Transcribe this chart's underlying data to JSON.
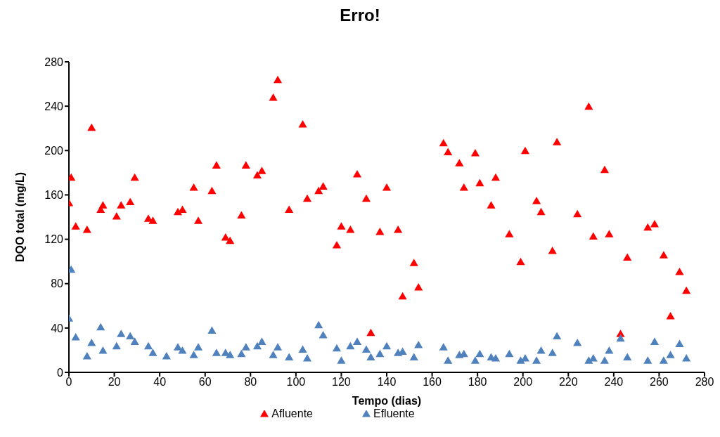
{
  "chart_data": {
    "type": "scatter",
    "title": "Erro!",
    "xlabel": "Tempo (dias)",
    "ylabel": "DQO total (mg/L)",
    "xlim": [
      0,
      280
    ],
    "xticks": [
      0,
      20,
      40,
      60,
      80,
      100,
      120,
      140,
      160,
      180,
      200,
      220,
      240,
      260,
      280
    ],
    "ylim": [
      0,
      280
    ],
    "yticks": [
      0,
      40,
      80,
      120,
      160,
      200,
      240,
      280
    ],
    "grid": false,
    "legend": "bottom",
    "marker": "triangle",
    "series": [
      {
        "name": "Afluente",
        "color": "#ff0000",
        "x": [
          0,
          1,
          3,
          8,
          10,
          14,
          15,
          21,
          23,
          27,
          29,
          35,
          37,
          48,
          50,
          55,
          57,
          63,
          65,
          69,
          71,
          76,
          78,
          83,
          85,
          90,
          92,
          97,
          103,
          105,
          110,
          112,
          118,
          120,
          124,
          127,
          131,
          133,
          137,
          140,
          145,
          147,
          152,
          154,
          165,
          167,
          172,
          174,
          179,
          181,
          186,
          188,
          194,
          199,
          201,
          206,
          208,
          213,
          215,
          224,
          229,
          231,
          236,
          238,
          243,
          246,
          255,
          258,
          262,
          265,
          269,
          272
        ],
        "values": [
          152,
          175,
          131,
          128,
          220,
          146,
          150,
          140,
          150,
          153,
          175,
          138,
          136,
          144,
          146,
          166,
          136,
          163,
          186,
          121,
          118,
          141,
          186,
          177,
          181,
          247,
          263,
          146,
          223,
          156,
          163,
          167,
          114,
          131,
          128,
          178,
          156,
          35,
          126,
          166,
          128,
          68,
          98,
          76,
          206,
          198,
          188,
          166,
          197,
          170,
          150,
          175,
          124,
          99,
          199,
          154,
          144,
          109,
          207,
          142,
          239,
          122,
          182,
          124,
          34,
          103,
          130,
          133,
          105,
          50,
          90,
          73
        ]
      },
      {
        "name": "Efluente",
        "color": "#4f81bd",
        "x": [
          0,
          1,
          3,
          8,
          10,
          14,
          15,
          21,
          23,
          27,
          29,
          35,
          37,
          43,
          48,
          50,
          55,
          57,
          63,
          65,
          69,
          71,
          76,
          78,
          83,
          85,
          90,
          92,
          97,
          103,
          105,
          110,
          112,
          118,
          120,
          124,
          127,
          131,
          133,
          137,
          140,
          145,
          147,
          152,
          154,
          165,
          167,
          172,
          174,
          179,
          181,
          186,
          188,
          194,
          199,
          201,
          206,
          208,
          213,
          215,
          224,
          229,
          231,
          236,
          238,
          243,
          246,
          255,
          258,
          262,
          265,
          269,
          272
        ],
        "values": [
          48,
          92,
          31,
          14,
          26,
          40,
          19,
          23,
          34,
          32,
          27,
          23,
          17,
          14,
          22,
          19,
          15,
          22,
          37,
          17,
          17,
          15,
          16,
          22,
          23,
          27,
          15,
          22,
          13,
          20,
          12,
          42,
          33,
          21,
          10,
          23,
          27,
          20,
          13,
          16,
          23,
          17,
          18,
          13,
          24,
          22,
          10,
          15,
          16,
          10,
          16,
          13,
          12,
          16,
          10,
          12,
          10,
          19,
          17,
          32,
          26,
          10,
          12,
          10,
          19,
          30,
          13,
          10,
          27,
          10,
          15,
          25,
          12
        ]
      }
    ]
  }
}
